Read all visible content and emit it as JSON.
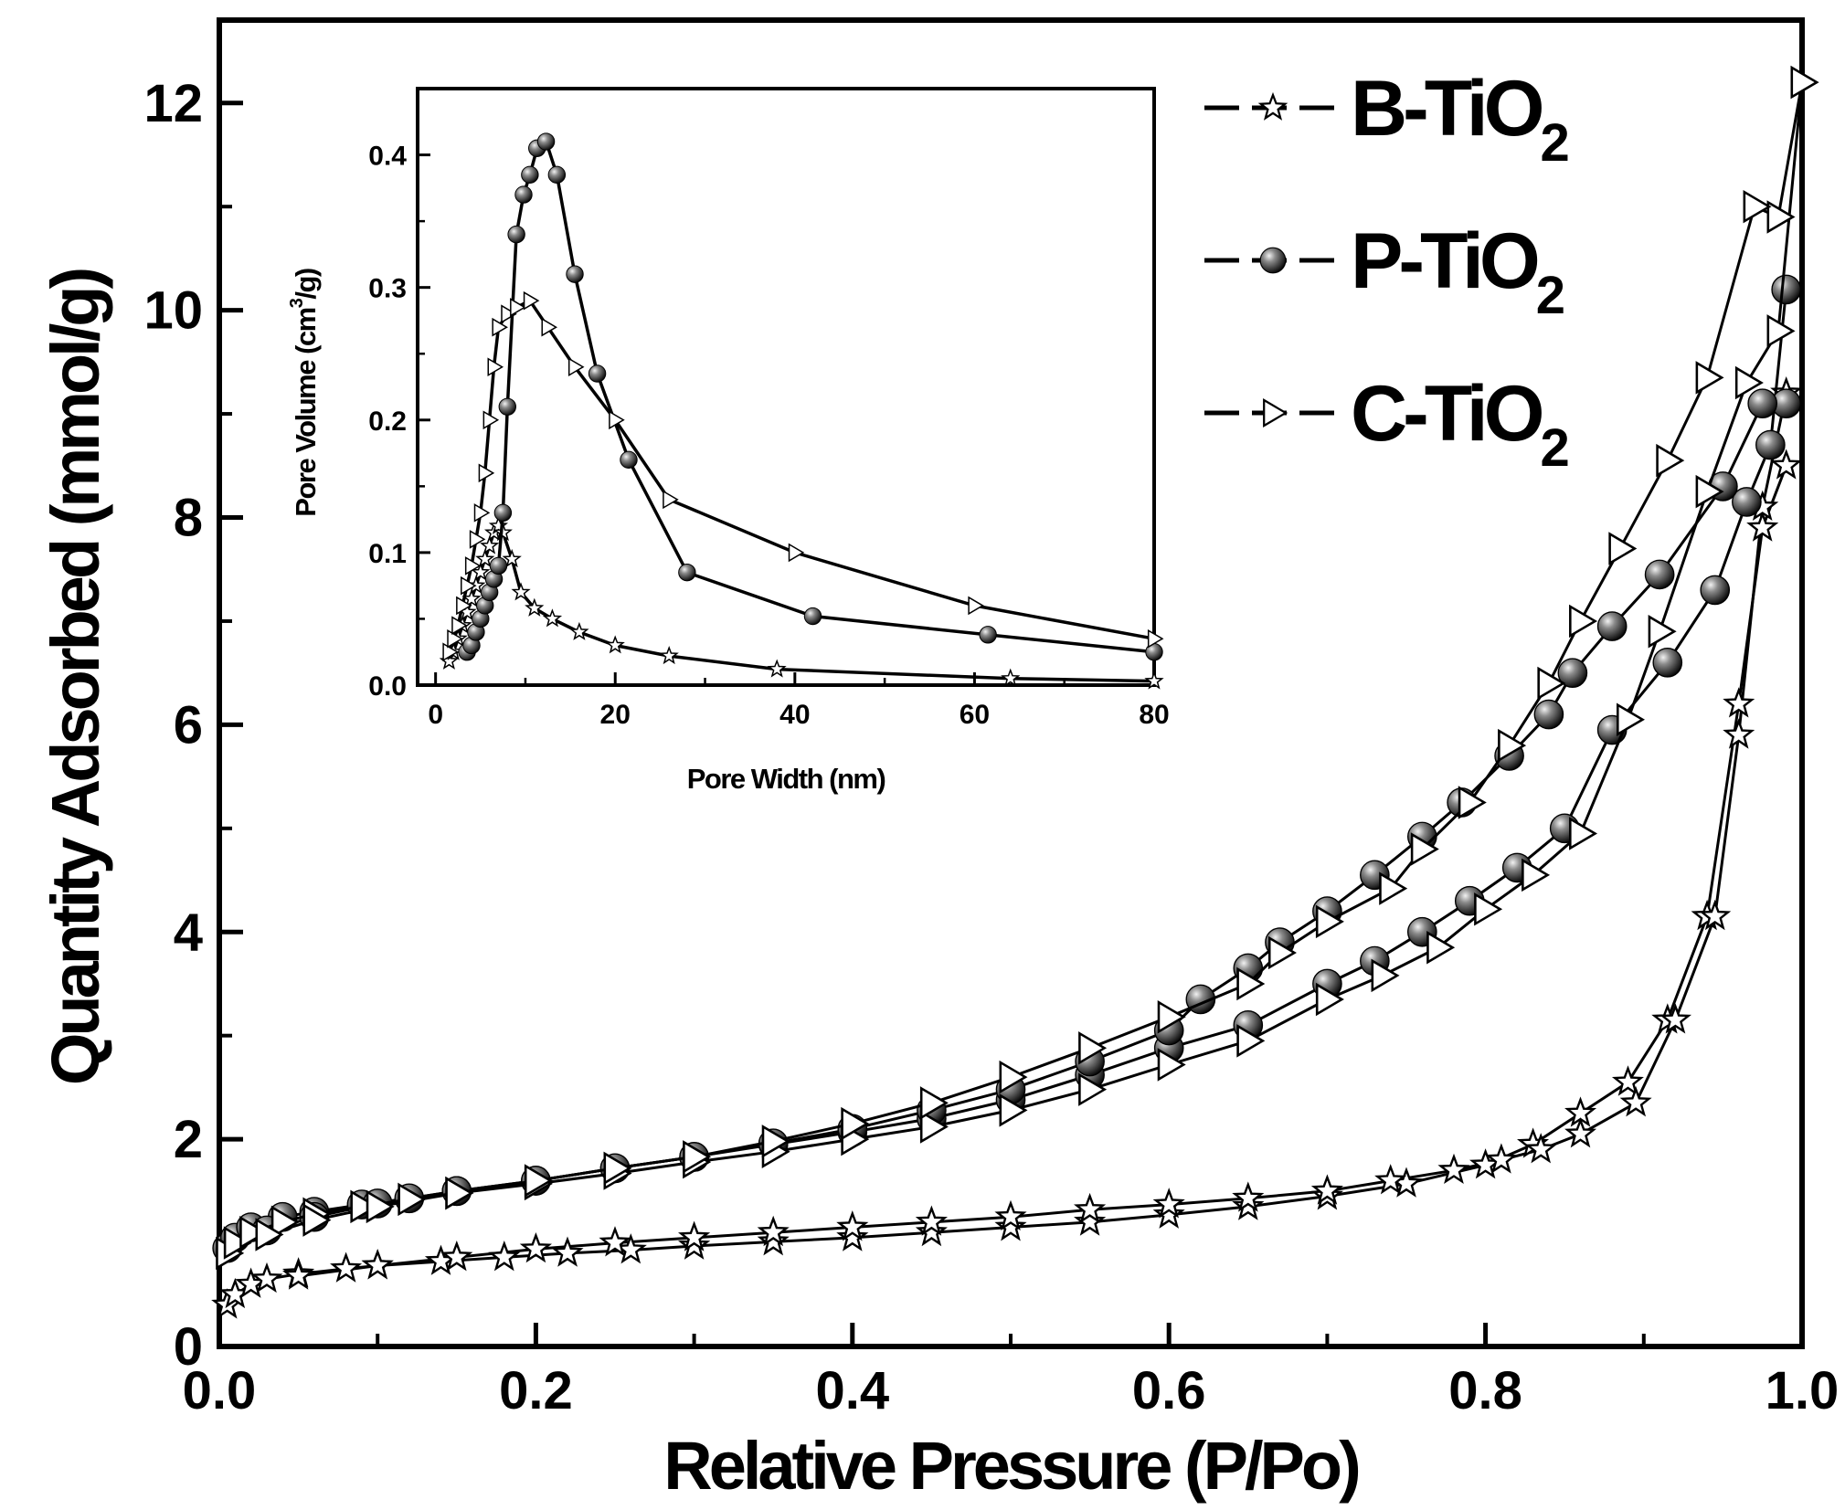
{
  "chart_data": [
    {
      "type": "line",
      "role": "main",
      "title": "",
      "xlabel": "Relative Pressure (P/Po)",
      "ylabel": "Quantity Adsorbed (mmol/g)",
      "xlim": [
        0.0,
        1.0
      ],
      "ylim": [
        0,
        12.8
      ],
      "xticks": [
        0.0,
        0.2,
        0.4,
        0.6,
        0.8,
        1.0
      ],
      "xtick_labels": [
        "0.0",
        "0.2",
        "0.4",
        "0.6",
        "0.8",
        "1.0"
      ],
      "yticks": [
        0,
        2,
        4,
        6,
        8,
        10,
        12
      ],
      "ytick_labels": [
        "0",
        "2",
        "4",
        "6",
        "8",
        "10",
        "12"
      ],
      "legend": {
        "placement": "top-right",
        "entries": [
          {
            "name": "B-TiO",
            "subscript": "2",
            "marker": "star"
          },
          {
            "name": "P-TiO",
            "subscript": "2",
            "marker": "sphere"
          },
          {
            "name": "C-TiO",
            "subscript": "2",
            "marker": "triangle-right"
          }
        ]
      },
      "series": [
        {
          "name": "B-TiO2",
          "marker": "star",
          "adsorption": {
            "x": [
              0.005,
              0.01,
              0.02,
              0.03,
              0.05,
              0.08,
              0.1,
              0.14,
              0.18,
              0.22,
              0.26,
              0.3,
              0.35,
              0.4,
              0.45,
              0.5,
              0.55,
              0.6,
              0.65,
              0.7,
              0.75,
              0.8,
              0.83,
              0.86,
              0.89,
              0.915,
              0.94,
              0.96,
              0.975,
              0.99
            ],
            "y": [
              0.4,
              0.5,
              0.6,
              0.65,
              0.7,
              0.75,
              0.78,
              0.82,
              0.86,
              0.9,
              0.93,
              0.97,
              1.01,
              1.05,
              1.1,
              1.15,
              1.2,
              1.27,
              1.35,
              1.45,
              1.57,
              1.75,
              1.95,
              2.25,
              2.55,
              3.15,
              4.15,
              6.2,
              7.9,
              8.5
            ]
          },
          "desorption": {
            "x": [
              0.99,
              0.975,
              0.96,
              0.945,
              0.92,
              0.895,
              0.86,
              0.835,
              0.81,
              0.78,
              0.74,
              0.7,
              0.65,
              0.6,
              0.55,
              0.5,
              0.45,
              0.4,
              0.35,
              0.3,
              0.25,
              0.2,
              0.15,
              0.1,
              0.05
            ],
            "y": [
              9.2,
              8.1,
              5.9,
              4.15,
              3.15,
              2.35,
              2.05,
              1.9,
              1.8,
              1.7,
              1.6,
              1.5,
              1.43,
              1.37,
              1.32,
              1.25,
              1.2,
              1.15,
              1.1,
              1.05,
              1.0,
              0.94,
              0.86,
              0.78,
              0.68
            ]
          }
        },
        {
          "name": "P-TiO2",
          "marker": "sphere",
          "adsorption": {
            "x": [
              0.005,
              0.01,
              0.02,
              0.04,
              0.06,
              0.09,
              0.12,
              0.15,
              0.2,
              0.25,
              0.3,
              0.35,
              0.4,
              0.45,
              0.5,
              0.55,
              0.6,
              0.65,
              0.7,
              0.73,
              0.76,
              0.79,
              0.82,
              0.85,
              0.88,
              0.915,
              0.945,
              0.965,
              0.98,
              0.99
            ],
            "y": [
              0.95,
              1.05,
              1.15,
              1.25,
              1.3,
              1.37,
              1.43,
              1.5,
              1.6,
              1.72,
              1.83,
              1.95,
              2.07,
              2.2,
              2.38,
              2.62,
              2.88,
              3.1,
              3.5,
              3.72,
              4.0,
              4.3,
              4.62,
              5.0,
              5.95,
              6.6,
              7.3,
              8.15,
              8.7,
              10.2
            ]
          },
          "desorption": {
            "x": [
              0.99,
              0.975,
              0.95,
              0.91,
              0.88,
              0.855,
              0.84,
              0.815,
              0.785,
              0.76,
              0.73,
              0.7,
              0.67,
              0.65,
              0.62,
              0.6,
              0.55,
              0.5,
              0.45,
              0.4,
              0.35,
              0.3,
              0.25,
              0.2,
              0.15,
              0.1,
              0.06,
              0.03
            ],
            "y": [
              9.1,
              9.1,
              8.3,
              7.45,
              6.95,
              6.5,
              6.1,
              5.7,
              5.25,
              4.92,
              4.55,
              4.2,
              3.9,
              3.65,
              3.35,
              3.05,
              2.75,
              2.48,
              2.28,
              2.1,
              1.96,
              1.83,
              1.72,
              1.6,
              1.5,
              1.38,
              1.25,
              1.12
            ]
          }
        },
        {
          "name": "C-TiO2",
          "marker": "triangle-right",
          "adsorption": {
            "x": [
              0.005,
              0.01,
              0.02,
              0.04,
              0.06,
              0.09,
              0.12,
              0.15,
              0.2,
              0.25,
              0.3,
              0.35,
              0.4,
              0.45,
              0.5,
              0.55,
              0.6,
              0.65,
              0.7,
              0.735,
              0.77,
              0.8,
              0.83,
              0.86,
              0.89,
              0.91,
              0.94,
              0.965,
              0.985,
              1.0
            ],
            "y": [
              0.9,
              1.0,
              1.1,
              1.2,
              1.28,
              1.35,
              1.42,
              1.48,
              1.57,
              1.67,
              1.78,
              1.88,
              2.0,
              2.12,
              2.28,
              2.48,
              2.72,
              2.95,
              3.35,
              3.58,
              3.85,
              4.22,
              4.55,
              4.95,
              6.05,
              6.9,
              8.25,
              9.3,
              9.8,
              12.2
            ]
          },
          "desorption": {
            "x": [
              1.0,
              0.985,
              0.97,
              0.94,
              0.915,
              0.885,
              0.86,
              0.84,
              0.815,
              0.79,
              0.76,
              0.74,
              0.7,
              0.67,
              0.65,
              0.6,
              0.55,
              0.5,
              0.45,
              0.4,
              0.35,
              0.3,
              0.25,
              0.2,
              0.15,
              0.1,
              0.06,
              0.03
            ],
            "y": [
              12.2,
              10.9,
              11.0,
              9.35,
              8.55,
              7.7,
              7.0,
              6.4,
              5.8,
              5.25,
              4.8,
              4.42,
              4.1,
              3.8,
              3.5,
              3.18,
              2.88,
              2.6,
              2.35,
              2.15,
              1.98,
              1.83,
              1.72,
              1.6,
              1.48,
              1.35,
              1.22,
              1.08
            ]
          }
        }
      ]
    },
    {
      "type": "line",
      "role": "inset",
      "title": "",
      "xlabel": "Pore Width (nm)",
      "ylabel_main": "Pore Volume (cm",
      "ylabel_sup": "3",
      "ylabel_end": "/g)",
      "xlim": [
        -2,
        80
      ],
      "ylim": [
        0,
        0.45
      ],
      "xticks": [
        0,
        20,
        40,
        60,
        80
      ],
      "xtick_labels": [
        "0",
        "20",
        "40",
        "60",
        "80"
      ],
      "yticks": [
        0.0,
        0.1,
        0.2,
        0.3,
        0.4
      ],
      "ytick_labels": [
        "0.0",
        "0.1",
        "0.2",
        "0.3",
        "0.4"
      ],
      "series": [
        {
          "name": "B-TiO2",
          "marker": "star",
          "x": [
            1.5,
            2.0,
            2.5,
            3.0,
            3.5,
            4.0,
            4.5,
            5.0,
            5.5,
            6.0,
            6.5,
            7.0,
            7.5,
            8.5,
            9.5,
            11,
            13,
            16,
            20,
            26,
            38,
            64,
            80
          ],
          "y": [
            0.018,
            0.025,
            0.035,
            0.045,
            0.055,
            0.065,
            0.075,
            0.085,
            0.095,
            0.105,
            0.115,
            0.12,
            0.115,
            0.095,
            0.07,
            0.058,
            0.05,
            0.04,
            0.03,
            0.022,
            0.012,
            0.005,
            0.003
          ]
        },
        {
          "name": "P-TiO2",
          "marker": "sphere",
          "x": [
            3.5,
            4.0,
            4.5,
            5.0,
            5.5,
            6.0,
            6.5,
            7.0,
            7.5,
            8.0,
            9.0,
            9.8,
            10.5,
            11.3,
            12.3,
            13.5,
            15.5,
            18,
            21.5,
            28,
            42,
            61.5,
            80
          ],
          "y": [
            0.025,
            0.03,
            0.04,
            0.05,
            0.06,
            0.07,
            0.08,
            0.09,
            0.13,
            0.21,
            0.34,
            0.37,
            0.385,
            0.405,
            0.41,
            0.385,
            0.31,
            0.235,
            0.17,
            0.085,
            0.052,
            0.038,
            0.025
          ]
        },
        {
          "name": "C-TiO2",
          "marker": "triangle-right",
          "x": [
            1.5,
            2.0,
            2.5,
            3.0,
            3.5,
            4.0,
            4.5,
            5.0,
            5.5,
            6.0,
            6.5,
            7.0,
            8.0,
            9.0,
            10.5,
            12.5,
            15.5,
            20,
            26,
            40,
            60,
            80
          ],
          "y": [
            0.025,
            0.035,
            0.045,
            0.06,
            0.075,
            0.09,
            0.11,
            0.13,
            0.16,
            0.2,
            0.24,
            0.27,
            0.28,
            0.285,
            0.29,
            0.27,
            0.24,
            0.2,
            0.14,
            0.1,
            0.06,
            0.035
          ]
        }
      ]
    }
  ]
}
